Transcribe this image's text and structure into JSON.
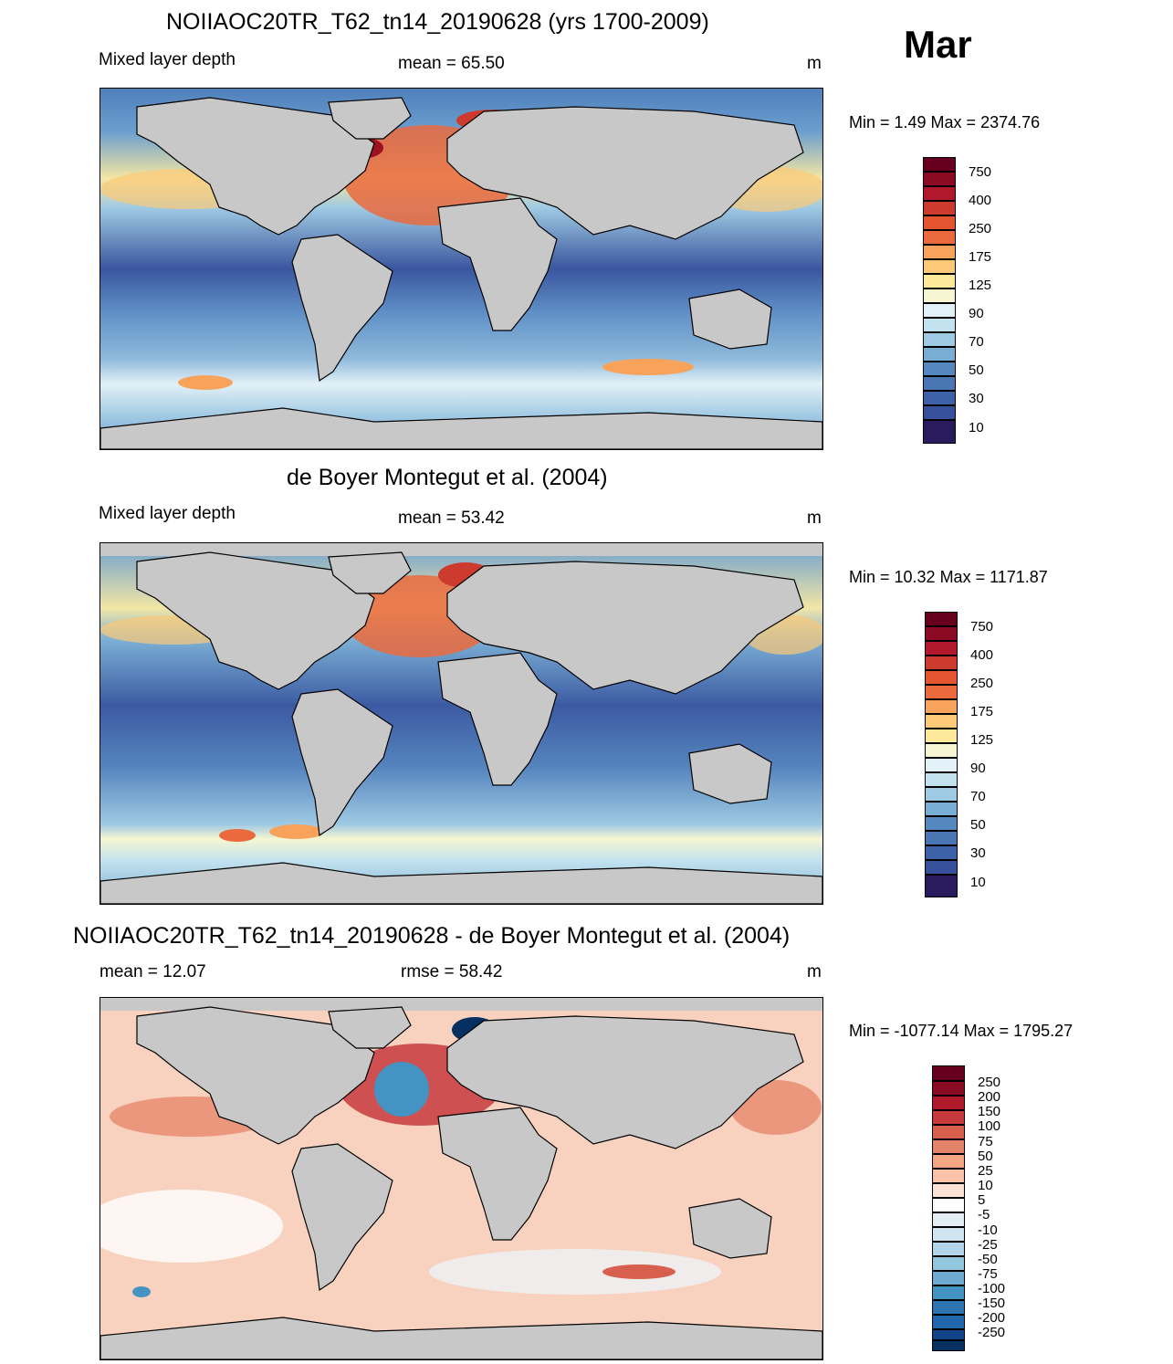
{
  "month": "Mar",
  "panels": [
    {
      "title": "NOIIAOC20TR_T62_tn14_20190628 (yrs 1700-2009)",
      "left_label": "Mixed layer depth",
      "center_label": "mean =  65.50",
      "units": "m",
      "minmax": "Min =   1.49 Max = 2374.76"
    },
    {
      "title": "de Boyer Montegut et al. (2004)",
      "left_label": "Mixed layer depth",
      "center_label": "mean =  53.42",
      "units": "m",
      "minmax": "Min =  10.32 Max = 1171.87"
    },
    {
      "title": "NOIIAOC20TR_T62_tn14_20190628 - de Boyer Montegut et al. (2004)",
      "left_label": "mean =  12.07",
      "center_label": "rmse =  58.42",
      "units": "m",
      "minmax": "Min = -1077.14 Max = 1795.27"
    }
  ],
  "colorbar_mld": {
    "labels": [
      "750",
      "400",
      "250",
      "175",
      "125",
      "90",
      "70",
      "50",
      "30",
      "10"
    ],
    "colors": [
      "#67001f",
      "#9e1220",
      "#cd3a2e",
      "#ea6a3d",
      "#f7a35c",
      "#fbc978",
      "#fee89a",
      "#f6f6d2",
      "#e2f1f7",
      "#c3e2ef",
      "#9fcae3",
      "#78aed4",
      "#5588bf",
      "#3e62a8",
      "#353c8c",
      "#2a1a5e"
    ]
  },
  "colorbar_diff": {
    "labels": [
      "250",
      "200",
      "150",
      "100",
      "75",
      "50",
      "25",
      "10",
      "5",
      "-5",
      "-10",
      "-25",
      "-50",
      "-75",
      "-100",
      "-150",
      "-200",
      "-250"
    ],
    "colors": [
      "#67001f",
      "#8c0b24",
      "#b2182b",
      "#c73a3c",
      "#d6604d",
      "#e58368",
      "#f4a582",
      "#f8c3a8",
      "#fbe2d3",
      "#ffffff",
      "#e4eef5",
      "#d1e5f0",
      "#b3d3e8",
      "#92c5de",
      "#6ea9d0",
      "#4393c3",
      "#2d73b1",
      "#2166ac",
      "#12448a",
      "#053061"
    ]
  }
}
